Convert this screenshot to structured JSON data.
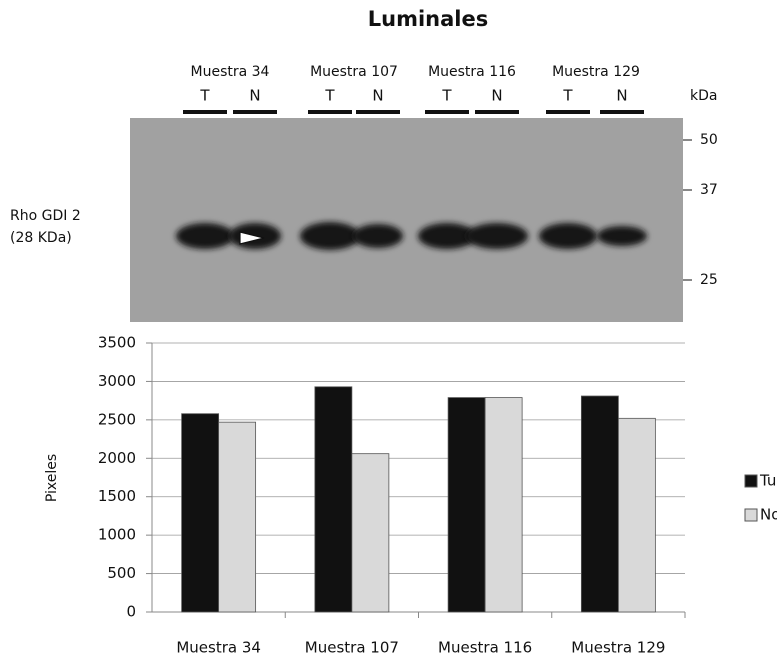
{
  "chart_data": {
    "type": "bar",
    "title": "Luminales",
    "categories": [
      "Muestra 34",
      "Muestra 107",
      "Muestra 116",
      "Muestra 129"
    ],
    "series": [
      {
        "name": "Tumor",
        "color": "#111111",
        "values": [
          2580,
          2930,
          2790,
          2810
        ]
      },
      {
        "name": "Normal",
        "color": "#d9d9d9",
        "values": [
          2470,
          2060,
          2790,
          2520
        ]
      }
    ],
    "y_label": "Pixeles",
    "ylim": [
      0,
      3500
    ],
    "yticks": [
      0,
      500,
      1000,
      1500,
      2000,
      2500,
      3000,
      3500
    ],
    "grid": true,
    "legend": "right"
  },
  "blot": {
    "samples": [
      "Muestra 34",
      "Muestra 107",
      "Muestra 116",
      "Muestra 129"
    ],
    "lanes": [
      "T",
      "N",
      "T",
      "N",
      "T",
      "N",
      "T",
      "N"
    ],
    "unit": "kDa",
    "markers": [
      "50",
      "37",
      "25"
    ],
    "band_label": [
      "Rho GDI 2",
      "(28 KDa)"
    ]
  }
}
